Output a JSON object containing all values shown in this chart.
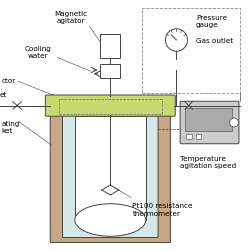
{
  "bg_color": "#ffffff",
  "labels": {
    "magnetic_agitator": "Magnetic\nagitator",
    "cooling_water": "Cooling\nwater",
    "pressure_gauge": "Pressure\ngauge",
    "gas_outlet": "Gas outlet",
    "temperature": "Temperature\nagitation speed",
    "pt100": "Pt100 resistance\nthermometer",
    "connector": "ctor",
    "heating_jacket": "ating\nket",
    "gas_inlet": "et"
  },
  "colors": {
    "lid": "#c8d96f",
    "vessel_outer": "#c8a882",
    "vessel_inner": "#d4e8e8",
    "vessel_glass": "#ffffff",
    "line_color": "#444444"
  }
}
